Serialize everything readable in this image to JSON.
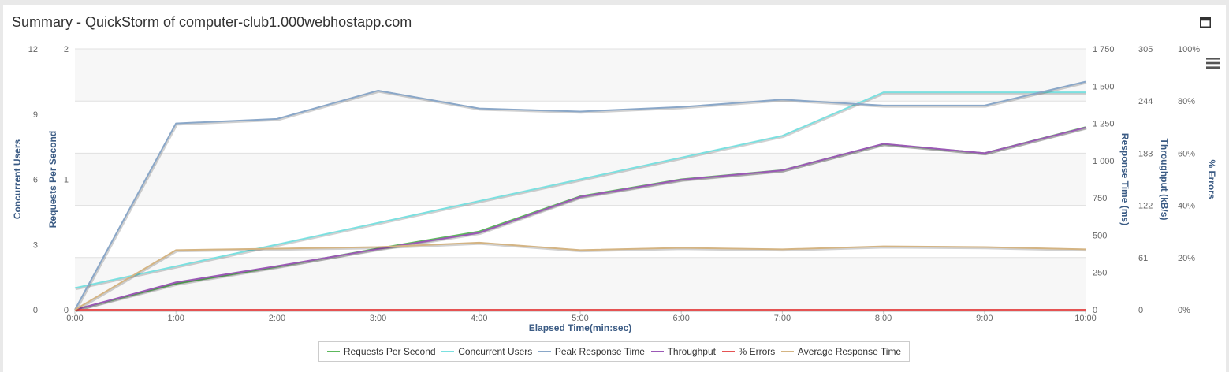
{
  "header": {
    "title": "Summary - QuickStorm of computer-club1.000webhostapp.com",
    "maximize_icon": "maximize-window-icon",
    "menu_icon": "hamburger-menu-icon"
  },
  "chart_data": {
    "type": "line",
    "x": [
      "0:00",
      "1:00",
      "2:00",
      "3:00",
      "4:00",
      "5:00",
      "6:00",
      "7:00",
      "8:00",
      "9:00",
      "10:00"
    ],
    "xlabel": "Elapsed Time(min:sec)",
    "grid": true,
    "legend_position": "bottom-center",
    "axes": [
      {
        "id": "concurrent",
        "title": "Concurrent Users",
        "side": "left",
        "range": [
          0,
          12
        ],
        "ticks": [
          "0",
          "3",
          "6",
          "9",
          "12"
        ]
      },
      {
        "id": "rps",
        "title": "Requests Per Second",
        "side": "left",
        "range": [
          0,
          2
        ],
        "ticks": [
          "0",
          "1",
          "2"
        ]
      },
      {
        "id": "response",
        "title": "Response Time (ms)",
        "side": "right",
        "range": [
          0,
          1750
        ],
        "ticks": [
          "0",
          "250",
          "500",
          "750",
          "1 000",
          "1 250",
          "1 500",
          "1 750"
        ]
      },
      {
        "id": "throughput",
        "title": "Throughput (kB/s)",
        "side": "right",
        "range": [
          0,
          305
        ],
        "ticks": [
          "0",
          "61",
          "122",
          "183",
          "244",
          "305"
        ]
      },
      {
        "id": "errors",
        "title": "% Errors",
        "side": "right",
        "range": [
          0,
          100
        ],
        "ticks": [
          "0%",
          "20%",
          "40%",
          "60%",
          "80%",
          "100%"
        ]
      }
    ],
    "series": [
      {
        "name": "Requests Per Second",
        "axis": "rps",
        "color": "#5cb85c",
        "values": [
          0,
          0.2,
          0.33,
          0.47,
          0.6,
          0.87,
          1.0,
          1.07,
          1.27,
          1.2,
          1.4
        ]
      },
      {
        "name": "Concurrent Users",
        "axis": "concurrent",
        "color": "#7be0e0",
        "values": [
          1,
          2,
          3,
          4,
          5,
          6,
          7,
          8,
          10,
          10,
          10
        ]
      },
      {
        "name": "Peak Response Time",
        "axis": "response",
        "color": "#8aa7c8",
        "values": [
          0,
          1250,
          1280,
          1470,
          1350,
          1330,
          1360,
          1410,
          1370,
          1370,
          1530
        ]
      },
      {
        "name": "Throughput",
        "axis": "throughput",
        "color": "#9b59b6",
        "values": [
          0,
          32,
          51,
          71,
          90,
          132,
          152,
          163,
          194,
          183,
          213
        ]
      },
      {
        "name": "% Errors",
        "axis": "errors",
        "color": "#e55353",
        "values": [
          0,
          0,
          0,
          0,
          0,
          0,
          0,
          0,
          0,
          0,
          0
        ]
      },
      {
        "name": "Average Response Time",
        "axis": "response",
        "color": "#d4b483",
        "values": [
          0,
          400,
          410,
          420,
          450,
          400,
          415,
          405,
          425,
          420,
          405
        ]
      }
    ]
  }
}
